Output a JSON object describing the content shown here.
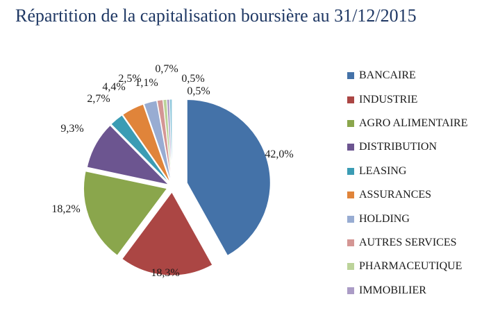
{
  "chart_data": {
    "type": "pie",
    "title": "Répartition de la capitalisation boursière au 31/12/2015",
    "legend_position": "right",
    "slices": [
      {
        "name": "BANCAIRE",
        "value": 42.0,
        "label": "42,0%",
        "color": "#4472a8"
      },
      {
        "name": "INDUSTRIE",
        "value": 18.3,
        "label": "18,3%",
        "color": "#ab4644"
      },
      {
        "name": "AGRO ALIMENTAIRE",
        "value": 18.2,
        "label": "18,2%",
        "color": "#8aa64c"
      },
      {
        "name": "DISTRIBUTION",
        "value": 9.3,
        "label": "9,3%",
        "color": "#6c5590"
      },
      {
        "name": "LEASING",
        "value": 2.7,
        "label": "2,7%",
        "color": "#3b9cb4"
      },
      {
        "name": "ASSURANCES",
        "value": 4.4,
        "label": "4,4%",
        "color": "#e0843a"
      },
      {
        "name": "HOLDING",
        "value": 2.5,
        "label": "2,5%",
        "color": "#98acd2"
      },
      {
        "name": "AUTRES SERVICES",
        "value": 1.1,
        "label": "1,1%",
        "color": "#d49694"
      },
      {
        "name": "PHARMACEUTIQUE",
        "value": 0.7,
        "label": "0,7%",
        "color": "#bcd39a"
      },
      {
        "name": "IMMOBILIER",
        "value": 0.5,
        "label": "0,5%",
        "color": "#ab9cc6"
      },
      {
        "name": "",
        "value": 0.5,
        "label": "0,5%",
        "color": "#8fc7dc"
      }
    ]
  }
}
